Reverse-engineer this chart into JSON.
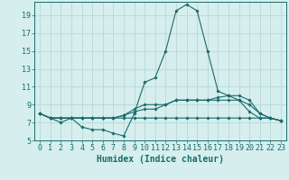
{
  "title": "",
  "xlabel": "Humidex (Indice chaleur)",
  "background_color": "#d6eeee",
  "grid_color": "#b8d8d8",
  "line_color": "#1a6b6b",
  "xlim": [
    -0.5,
    23.5
  ],
  "ylim": [
    5,
    20.5
  ],
  "xticks": [
    0,
    1,
    2,
    3,
    4,
    5,
    6,
    7,
    8,
    9,
    10,
    11,
    12,
    13,
    14,
    15,
    16,
    17,
    18,
    19,
    20,
    21,
    22,
    23
  ],
  "yticks": [
    5,
    7,
    9,
    11,
    13,
    15,
    17,
    19
  ],
  "series": [
    {
      "x": [
        0,
        1,
        2,
        3,
        4,
        5,
        6,
        7,
        8,
        9,
        10,
        11,
        12,
        13,
        14,
        15,
        16,
        17,
        18,
        19,
        20,
        21,
        22,
        23
      ],
      "y": [
        8,
        7.5,
        7,
        7.5,
        6.5,
        6.2,
        6.2,
        5.8,
        5.5,
        8,
        11.5,
        12,
        15,
        19.5,
        20.2,
        19.5,
        15,
        10.5,
        10,
        9.5,
        8.2,
        7.5,
        7.5,
        7.2
      ]
    },
    {
      "x": [
        0,
        1,
        2,
        3,
        4,
        5,
        6,
        7,
        8,
        9,
        10,
        11,
        12,
        13,
        14,
        15,
        16,
        17,
        18,
        19,
        20,
        21,
        22,
        23
      ],
      "y": [
        8,
        7.5,
        7.5,
        7.5,
        7.5,
        7.5,
        7.5,
        7.5,
        7.8,
        8.5,
        9,
        9,
        9,
        9.5,
        9.5,
        9.5,
        9.5,
        9.8,
        10,
        10,
        9.5,
        8,
        7.5,
        7.2
      ]
    },
    {
      "x": [
        0,
        1,
        2,
        3,
        4,
        5,
        6,
        7,
        8,
        9,
        10,
        11,
        12,
        13,
        14,
        15,
        16,
        17,
        18,
        19,
        20,
        21,
        22,
        23
      ],
      "y": [
        8,
        7.5,
        7.5,
        7.5,
        7.5,
        7.5,
        7.5,
        7.5,
        7.5,
        7.5,
        7.5,
        7.5,
        7.5,
        7.5,
        7.5,
        7.5,
        7.5,
        7.5,
        7.5,
        7.5,
        7.5,
        7.5,
        7.5,
        7.2
      ]
    },
    {
      "x": [
        0,
        1,
        2,
        3,
        4,
        5,
        6,
        7,
        8,
        9,
        10,
        11,
        12,
        13,
        14,
        15,
        16,
        17,
        18,
        19,
        20,
        21,
        22,
        23
      ],
      "y": [
        8,
        7.5,
        7.5,
        7.5,
        7.5,
        7.5,
        7.5,
        7.5,
        7.8,
        8.2,
        8.5,
        8.5,
        9,
        9.5,
        9.5,
        9.5,
        9.5,
        9.5,
        9.5,
        9.5,
        9.0,
        8,
        7.5,
        7.2
      ]
    }
  ],
  "marker": "D",
  "marker_size": 1.8,
  "linewidth": 0.8,
  "xlabel_fontsize": 7,
  "tick_fontsize": 6
}
